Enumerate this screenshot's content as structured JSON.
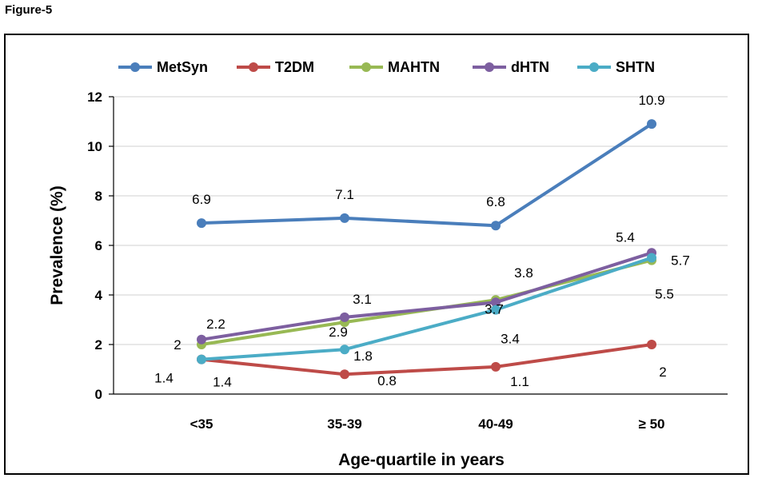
{
  "figure_label": "Figure-5",
  "chart_data": {
    "type": "line",
    "categories": [
      "<35",
      "35-39",
      "40-49",
      "≥ 50"
    ],
    "xlabel": "Age-quartile in years",
    "ylabel": "Prevalence (%)",
    "ylim": [
      0,
      12
    ],
    "yticks": [
      0,
      2,
      4,
      6,
      8,
      10,
      12
    ],
    "grid": true,
    "legend_position": "top",
    "series": [
      {
        "name": "MetSyn",
        "color": "#4a7ebb",
        "values": [
          6.9,
          7.1,
          6.8,
          10.9
        ],
        "labels": [
          "6.9",
          "7.1",
          "6.8",
          "10.9"
        ]
      },
      {
        "name": "T2DM",
        "color": "#be4b48",
        "values": [
          1.4,
          0.8,
          1.1,
          2.0
        ],
        "labels": [
          "1.4",
          "0.8",
          "1.1",
          "2"
        ]
      },
      {
        "name": "MAHTN",
        "color": "#98b954",
        "values": [
          2.0,
          2.9,
          3.8,
          5.4
        ],
        "labels": [
          "2",
          "2.9",
          "3.8",
          "5.4"
        ]
      },
      {
        "name": "dHTN",
        "color": "#7d5fa0",
        "values": [
          2.2,
          3.1,
          3.7,
          5.7
        ],
        "labels": [
          "2.2",
          "3.1",
          "3.7",
          "5.7"
        ]
      },
      {
        "name": "SHTN",
        "color": "#4bacc6",
        "values": [
          1.4,
          1.8,
          3.4,
          5.5
        ],
        "labels": [
          "1.4",
          "1.8",
          "3.4",
          "5.5"
        ]
      }
    ]
  }
}
